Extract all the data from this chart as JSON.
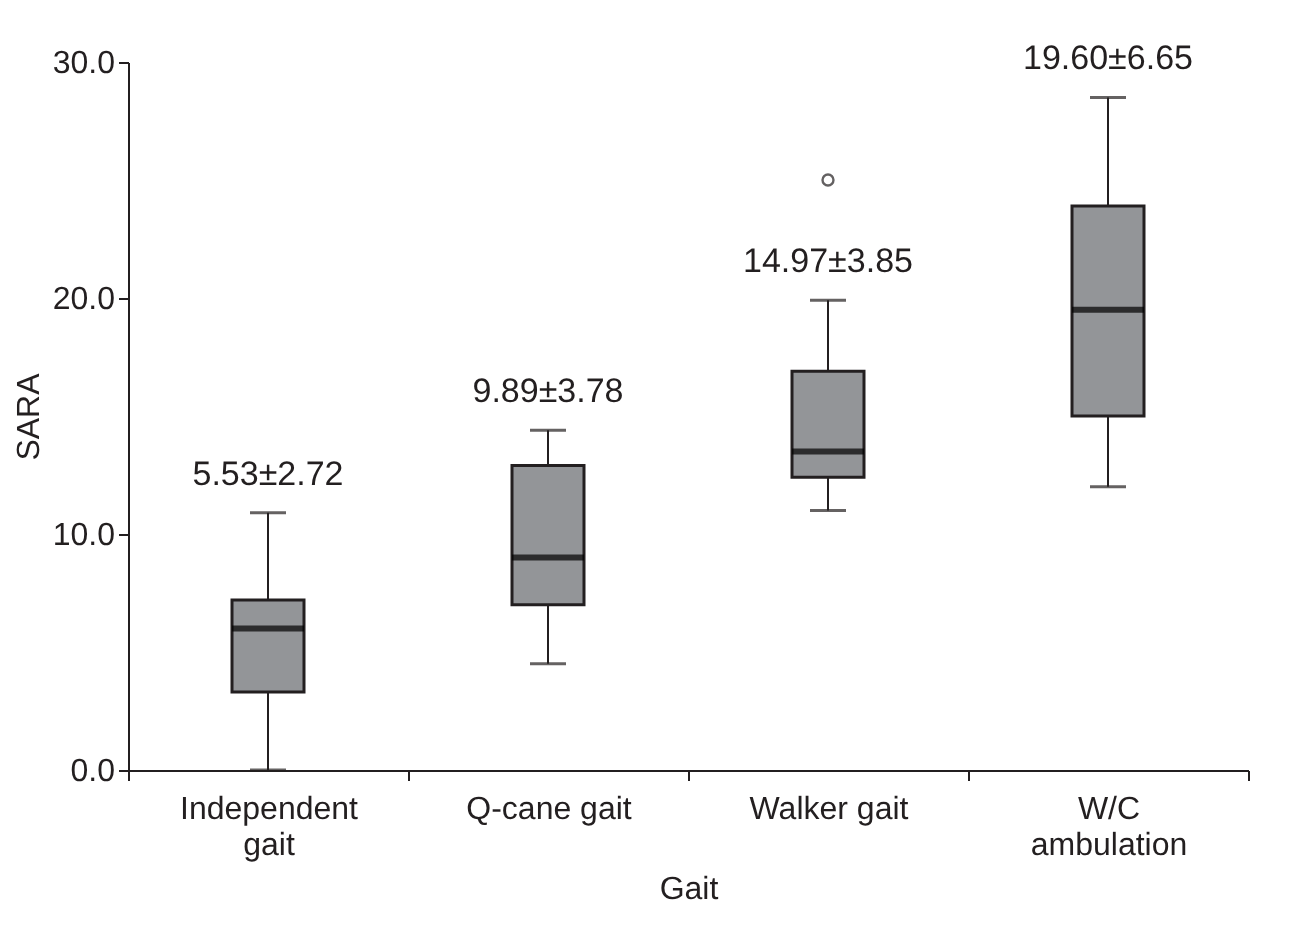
{
  "chart_data": {
    "type": "box",
    "xlabel": "Gait",
    "ylabel": "SARA",
    "categories": [
      "Independent gait",
      "Q-cane gait",
      "Walker gait",
      "W/C ambulation"
    ],
    "boxes": [
      {
        "low": 0,
        "q1": 3.3,
        "median": 6.0,
        "q3": 7.2,
        "high": 10.9
      },
      {
        "low": 4.5,
        "q1": 7.0,
        "median": 9.0,
        "q3": 12.9,
        "high": 14.4
      },
      {
        "low": 11.0,
        "q1": 12.4,
        "median": 13.5,
        "q3": 16.9,
        "high": 19.9,
        "outliers": [
          25.0
        ]
      },
      {
        "low": 12.0,
        "q1": 15.0,
        "median": 19.5,
        "q3": 23.9,
        "high": 28.5
      }
    ],
    "color": "#939598",
    "ylim": [
      0,
      30
    ],
    "yticks": [
      {
        "value": 0,
        "label": "0.0"
      },
      {
        "value": 10,
        "label": "10.0"
      },
      {
        "value": 20,
        "label": "20.0"
      },
      {
        "value": 30,
        "label": "30.0"
      }
    ],
    "annotations": [
      "5.53±2.72",
      "9.89±3.78",
      "14.97±3.85",
      "19.60±6.65"
    ],
    "grid": false
  }
}
